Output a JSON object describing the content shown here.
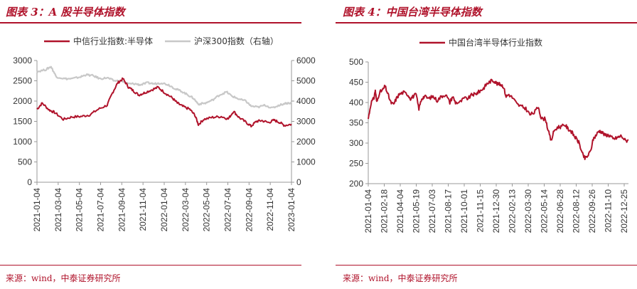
{
  "left_panel": {
    "title": "图表 3：A 股半导体指数",
    "source": "来源：wind，中泰证券研究所"
  },
  "right_panel": {
    "title": "图表 4：中国台湾半导体指数",
    "source": "来源：wind，中泰证券研究所"
  },
  "colors": {
    "primary": "#b0132b",
    "secondary": "#c8c8c8",
    "axis": "#999999"
  },
  "chart_data": [
    {
      "type": "line",
      "title": "图表 3：A 股半导体指数",
      "x_ticks": [
        "2021-01-04",
        "2021-03-04",
        "2021-05-04",
        "2021-07-04",
        "2021-09-04",
        "2021-11-04",
        "2022-01-04",
        "2022-03-04",
        "2022-05-04",
        "2022-07-04",
        "2022-09-04",
        "2022-11-04",
        "2023-01-04"
      ],
      "ylim": [
        0,
        3000
      ],
      "y_ticks": [
        "0",
        "500",
        "1000",
        "1500",
        "2000",
        "2500",
        "3000"
      ],
      "y2lim": [
        0,
        6000
      ],
      "y2_ticks": [
        "0",
        "1000",
        "2000",
        "3000",
        "4000",
        "5000",
        "6000"
      ],
      "series": [
        {
          "name": "中信行业指数:半导体",
          "axis": "left",
          "color": "#b0132b",
          "points": [
            [
              0,
              1800
            ],
            [
              0.3,
              1950
            ],
            [
              0.7,
              1780
            ],
            [
              1.0,
              1720
            ],
            [
              1.5,
              1550
            ],
            [
              2.0,
              1610
            ],
            [
              2.5,
              1620
            ],
            [
              3.0,
              1660
            ],
            [
              3.5,
              1800
            ],
            [
              4.0,
              1900
            ],
            [
              4.3,
              2200
            ],
            [
              4.6,
              2450
            ],
            [
              4.9,
              2550
            ],
            [
              5.2,
              2350
            ],
            [
              5.5,
              2250
            ],
            [
              5.8,
              2150
            ],
            [
              6.1,
              2200
            ],
            [
              6.5,
              2270
            ],
            [
              6.9,
              2340
            ],
            [
              7.3,
              2200
            ],
            [
              7.7,
              2080
            ],
            [
              8.0,
              1950
            ],
            [
              8.3,
              1870
            ],
            [
              8.7,
              1800
            ],
            [
              9.0,
              1650
            ],
            [
              9.2,
              1420
            ],
            [
              9.5,
              1550
            ],
            [
              10.0,
              1600
            ],
            [
              10.5,
              1620
            ],
            [
              10.9,
              1560
            ],
            [
              11.2,
              1750
            ],
            [
              11.5,
              1600
            ],
            [
              11.9,
              1480
            ],
            [
              12.2,
              1380
            ],
            [
              12.5,
              1500
            ],
            [
              12.8,
              1520
            ],
            [
              13.2,
              1470
            ],
            [
              13.5,
              1530
            ],
            [
              13.8,
              1480
            ],
            [
              14.1,
              1400
            ],
            [
              14.5,
              1430
            ]
          ]
        },
        {
          "name": "沪深300指数（右轴）",
          "axis": "right",
          "color": "#c8c8c8",
          "points": [
            [
              0,
              5450
            ],
            [
              0.5,
              5550
            ],
            [
              0.8,
              5700
            ],
            [
              1.1,
              5200
            ],
            [
              1.6,
              5100
            ],
            [
              2.0,
              5100
            ],
            [
              2.5,
              5200
            ],
            [
              2.8,
              5300
            ],
            [
              3.2,
              5250
            ],
            [
              3.6,
              5100
            ],
            [
              4.0,
              5150
            ],
            [
              4.4,
              5000
            ],
            [
              4.8,
              5000
            ],
            [
              5.2,
              4850
            ],
            [
              5.6,
              4850
            ],
            [
              5.9,
              4800
            ],
            [
              6.3,
              4900
            ],
            [
              6.7,
              4850
            ],
            [
              7.1,
              4900
            ],
            [
              7.5,
              4800
            ],
            [
              7.9,
              4600
            ],
            [
              8.2,
              4500
            ],
            [
              8.6,
              4300
            ],
            [
              8.9,
              4150
            ],
            [
              9.2,
              3850
            ],
            [
              9.6,
              3900
            ],
            [
              10.0,
              4050
            ],
            [
              10.4,
              4300
            ],
            [
              10.8,
              4450
            ],
            [
              11.1,
              4250
            ],
            [
              11.5,
              4100
            ],
            [
              11.9,
              4000
            ],
            [
              12.2,
              3750
            ],
            [
              12.6,
              3700
            ],
            [
              13.0,
              3800
            ],
            [
              13.4,
              3650
            ],
            [
              13.8,
              3800
            ],
            [
              14.2,
              3900
            ],
            [
              14.5,
              3900
            ]
          ]
        }
      ]
    },
    {
      "type": "line",
      "title": "图表 4：中国台湾半导体指数",
      "x_ticks": [
        "2021-01-04",
        "2021-02-18",
        "2021-04-04",
        "2021-05-19",
        "2021-07-03",
        "2021-08-17",
        "2021-10-01",
        "2021-11-15",
        "2021-12-30",
        "2022-02-13",
        "2022-03-30",
        "2022-05-14",
        "2022-06-28",
        "2022-08-12",
        "2022-09-26",
        "2022-11-10",
        "2022-12-25"
      ],
      "ylim": [
        200,
        500
      ],
      "y_ticks": [
        "200",
        "250",
        "300",
        "350",
        "400",
        "450",
        "500"
      ],
      "series": [
        {
          "name": "中国台湾半导体行业指数",
          "color": "#b0132b",
          "points": [
            [
              0,
              360
            ],
            [
              0.2,
              400
            ],
            [
              0.4,
              410
            ],
            [
              0.5,
              430
            ],
            [
              0.6,
              400
            ],
            [
              0.8,
              425
            ],
            [
              1.0,
              430
            ],
            [
              1.2,
              440
            ],
            [
              1.4,
              420
            ],
            [
              1.6,
              400
            ],
            [
              1.8,
              395
            ],
            [
              2.0,
              410
            ],
            [
              2.2,
              420
            ],
            [
              2.5,
              425
            ],
            [
              2.8,
              420
            ],
            [
              3.0,
              410
            ],
            [
              3.2,
              415
            ],
            [
              3.4,
              420
            ],
            [
              3.6,
              385
            ],
            [
              3.8,
              410
            ],
            [
              4.0,
              415
            ],
            [
              4.3,
              410
            ],
            [
              4.6,
              415
            ],
            [
              4.9,
              405
            ],
            [
              5.2,
              415
            ],
            [
              5.5,
              420
            ],
            [
              5.8,
              400
            ],
            [
              6.0,
              415
            ],
            [
              6.2,
              400
            ],
            [
              6.5,
              400
            ],
            [
              6.8,
              410
            ],
            [
              7.1,
              410
            ],
            [
              7.4,
              420
            ],
            [
              7.6,
              420
            ],
            [
              7.8,
              425
            ],
            [
              8.0,
              430
            ],
            [
              8.2,
              435
            ],
            [
              8.4,
              445
            ],
            [
              8.6,
              450
            ],
            [
              8.8,
              455
            ],
            [
              9.0,
              452
            ],
            [
              9.2,
              445
            ],
            [
              9.4,
              445
            ],
            [
              9.6,
              440
            ],
            [
              9.8,
              415
            ],
            [
              10.0,
              420
            ],
            [
              10.3,
              410
            ],
            [
              10.6,
              395
            ],
            [
              10.9,
              390
            ],
            [
              11.2,
              385
            ],
            [
              11.5,
              370
            ],
            [
              11.8,
              375
            ],
            [
              12.1,
              390
            ],
            [
              12.3,
              360
            ],
            [
              12.6,
              360
            ],
            [
              12.8,
              330
            ],
            [
              13.0,
              305
            ],
            [
              13.2,
              330
            ],
            [
              13.5,
              340
            ],
            [
              13.7,
              340
            ],
            [
              14.0,
              345
            ],
            [
              14.2,
              335
            ],
            [
              14.4,
              330
            ],
            [
              14.6,
              320
            ],
            [
              14.8,
              310
            ],
            [
              15.0,
              300
            ],
            [
              15.2,
              275
            ],
            [
              15.4,
              262
            ],
            [
              15.6,
              268
            ],
            [
              15.8,
              280
            ],
            [
              16.0,
              310
            ],
            [
              16.2,
              320
            ],
            [
              16.4,
              330
            ],
            [
              16.6,
              328
            ],
            [
              16.8,
              320
            ],
            [
              17.0,
              320
            ],
            [
              17.2,
              318
            ],
            [
              17.4,
              310
            ],
            [
              17.6,
              312
            ],
            [
              17.8,
              315
            ],
            [
              18.0,
              318
            ],
            [
              18.3,
              305
            ],
            [
              18.5,
              308
            ]
          ]
        }
      ]
    }
  ]
}
